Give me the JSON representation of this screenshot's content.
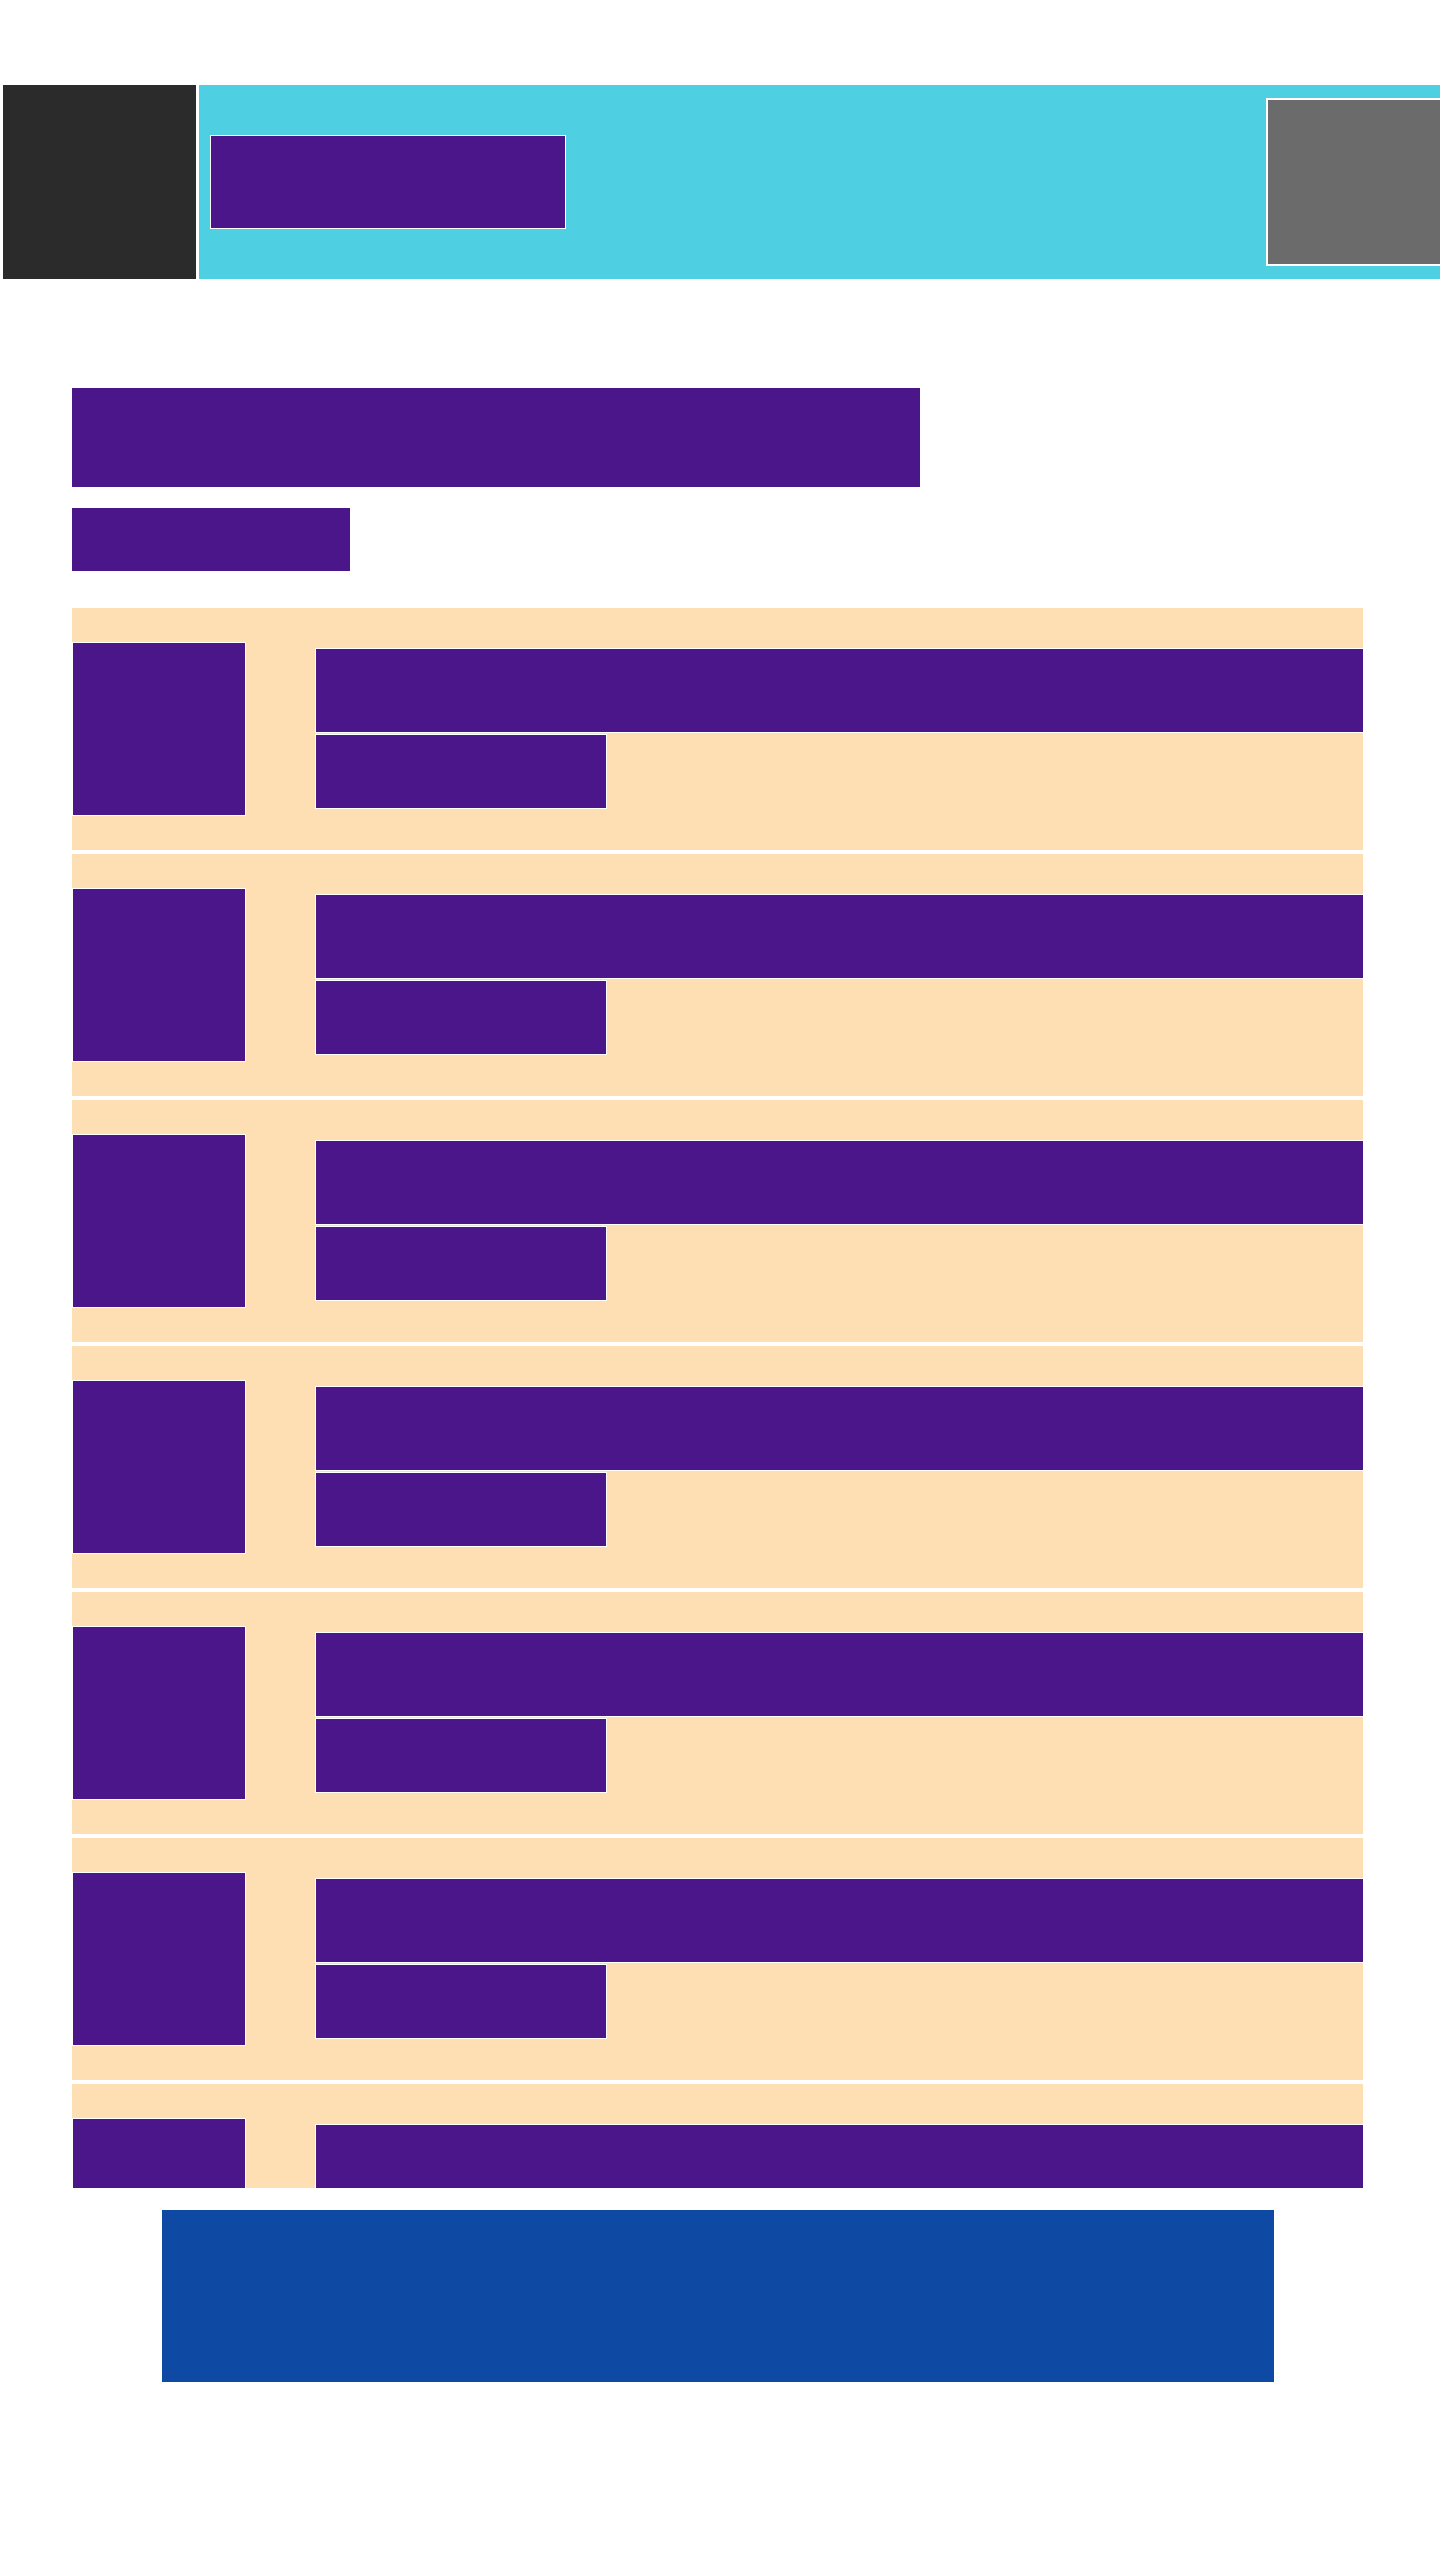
{
  "header": {
    "app_title": "",
    "avatar_label": ""
  },
  "page": {
    "title": "",
    "subtitle": ""
  },
  "list": {
    "items": [
      {
        "title": "",
        "meta": ""
      },
      {
        "title": "",
        "meta": ""
      },
      {
        "title": "",
        "meta": ""
      },
      {
        "title": "",
        "meta": ""
      },
      {
        "title": "",
        "meta": ""
      },
      {
        "title": "",
        "meta": ""
      },
      {
        "title": "",
        "meta": ""
      }
    ]
  },
  "footer": {
    "cta_label": ""
  },
  "colors": {
    "nav_bg": "#2b2b2b",
    "app_bar_bg": "#4ed0e2",
    "text_block": "#4a168a",
    "card_bg": "#fddfb3",
    "avatar_bg": "#6b6b6b",
    "cta_bg": "#0e4aa3"
  }
}
